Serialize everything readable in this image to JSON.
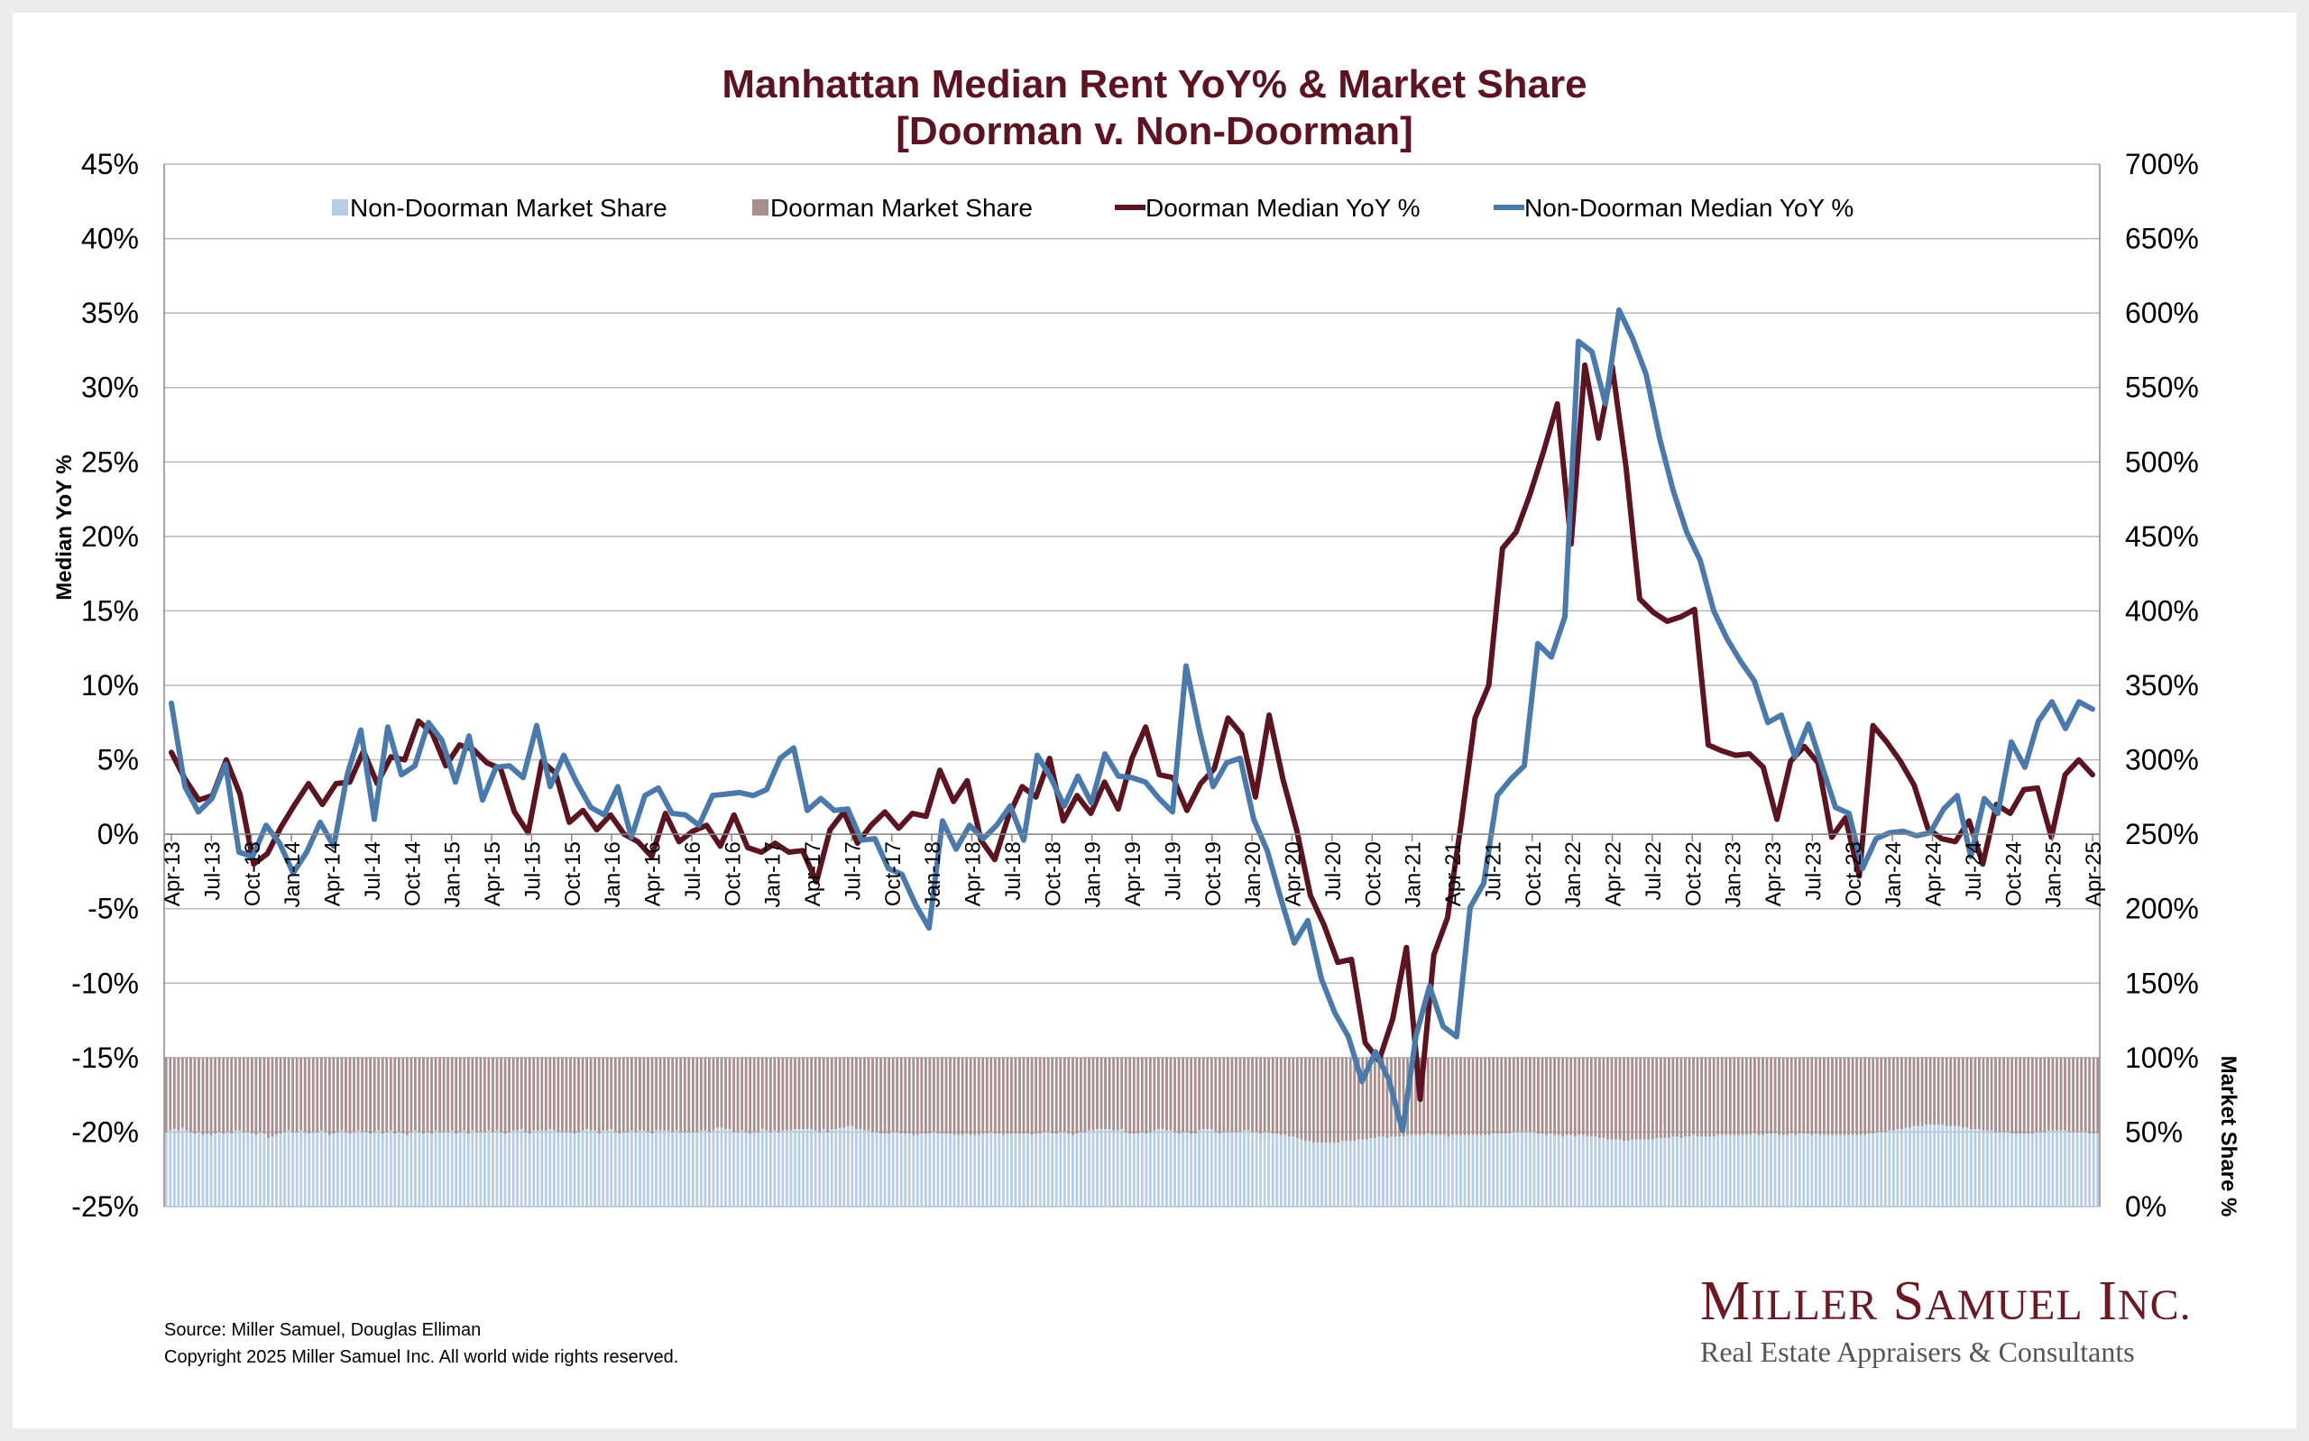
{
  "title": {
    "line1": "Manhattan Median Rent YoY% & Market Share",
    "line2": "[Doorman v. Non-Doorman]"
  },
  "source": {
    "line1": "Source: Miller Samuel, Douglas Elliman",
    "line2": "Copyright 2025 Miller Samuel Inc.  All world wide rights reserved."
  },
  "logo": {
    "name_initial_1": "M",
    "name_rest_1": "ILLER",
    "name_initial_2": "S",
    "name_rest_2": "AMUEL",
    "name_initial_3": "I",
    "name_rest_3": "NC.",
    "tagline": "Real Estate Appraisers & Consultants"
  },
  "chart_data": {
    "type": "line",
    "title": "Manhattan Median Rent YoY% & Market Share [Doorman v. Non-Doorman]",
    "ylabel": "Median YoY %",
    "y2label": "Market Share %",
    "ylim": [
      -25,
      45
    ],
    "y2lim": [
      0,
      700
    ],
    "yticks": [
      "45%",
      "40%",
      "35%",
      "30%",
      "25%",
      "20%",
      "15%",
      "10%",
      "5%",
      "0%",
      "-5%",
      "-10%",
      "-15%",
      "-20%",
      "-25%"
    ],
    "y2ticks": [
      "700%",
      "650%",
      "600%",
      "550%",
      "500%",
      "450%",
      "400%",
      "350%",
      "300%",
      "250%",
      "200%",
      "150%",
      "100%",
      "50%",
      "0%"
    ],
    "xtick_labels": [
      "Apr-13",
      "Jul-13",
      "Oct-13",
      "Jan-14",
      "Apr-14",
      "Jul-14",
      "Oct-14",
      "Jan-15",
      "Apr-15",
      "Jul-15",
      "Oct-15",
      "Jan-16",
      "Apr-16",
      "Jul-16",
      "Oct-16",
      "Jan-17",
      "Apr-17",
      "Jul-17",
      "Oct-17",
      "Jan-18",
      "Apr-18",
      "Jul-18",
      "Oct-18",
      "Jan-19",
      "Apr-19",
      "Jul-19",
      "Oct-19",
      "Jan-20",
      "Apr-20",
      "Jul-20",
      "Oct-20",
      "Jan-21",
      "Apr-21",
      "Jul-21",
      "Oct-21",
      "Jan-22",
      "Apr-22",
      "Jul-22",
      "Oct-22",
      "Jan-23",
      "Apr-23",
      "Jul-23",
      "Oct-23",
      "Jan-24",
      "Apr-24",
      "Jul-24",
      "Oct-24",
      "Jan-25",
      "Apr-25"
    ],
    "x_start": "Apr-13",
    "x_end": "Apr-25",
    "grid": true,
    "legend": "top",
    "colors": {
      "doorman_line": "#5c1420",
      "non_doorman_line": "#4a7aac",
      "doorman_bar": "#a98e8e",
      "non_doorman_bar": "#b7cde3",
      "title": "#5c1420"
    },
    "series": [
      {
        "name": "Non-Doorman Market Share",
        "kind": "bar",
        "axis": "right",
        "values": [
          50,
          51,
          52,
          51,
          53,
          51,
          50,
          49,
          50,
          48,
          49,
          48,
          49,
          50,
          49,
          50,
          49,
          51,
          51,
          50,
          50,
          49,
          48,
          50,
          49,
          46,
          47,
          48,
          49,
          50,
          51,
          50,
          50,
          51,
          50,
          49,
          50,
          50,
          51,
          50,
          48,
          49,
          50,
          51,
          50,
          49,
          50,
          51,
          50,
          50,
          49,
          50,
          51,
          49,
          50,
          51,
          49,
          50,
          49,
          48,
          50,
          51,
          50,
          49,
          50,
          49,
          51,
          50,
          50,
          50,
          51,
          49,
          50,
          51,
          49,
          51,
          50,
          50,
          50,
          51,
          50,
          51,
          50,
          49,
          50,
          51,
          51,
          52,
          50,
          49,
          51,
          51,
          51,
          51,
          52,
          51,
          50,
          50,
          50,
          50,
          49,
          50,
          51,
          52,
          51,
          51,
          49,
          51,
          51,
          52,
          50,
          49,
          50,
          50,
          51,
          50,
          51,
          51,
          50,
          49,
          51,
          51,
          51,
          51,
          50,
          51,
          50,
          50,
          50,
          50,
          50,
          51,
          51,
          50,
          51,
          53,
          53,
          52,
          52,
          50,
          50,
          51,
          50,
          49,
          50,
          50,
          52,
          51,
          50,
          51,
          50,
          51,
          51,
          51,
          52,
          52,
          52,
          52,
          52,
          51,
          50,
          52,
          50,
          52,
          52,
          53,
          53,
          54,
          54,
          52,
          52,
          51,
          51,
          50,
          50,
          49,
          49,
          49,
          50,
          50,
          49,
          49,
          49,
          48,
          48,
          49,
          49,
          49,
          50,
          49,
          49,
          49,
          49,
          48,
          48,
          48,
          49,
          48,
          48,
          48,
          49,
          49,
          50,
          49,
          49,
          48,
          49,
          49,
          49,
          49,
          49,
          49,
          48,
          49,
          49,
          50,
          50,
          49,
          49,
          50,
          50,
          49,
          48,
          49,
          50,
          50,
          51,
          51,
          52,
          52,
          52,
          52,
          51,
          51,
          52,
          50,
          49,
          49,
          49,
          50,
          49,
          50,
          51,
          52,
          52,
          51,
          51,
          50,
          49,
          50,
          50,
          49,
          49,
          51,
          52,
          52,
          52,
          50,
          49,
          50,
          50,
          50,
          50,
          50,
          51,
          51,
          50,
          50,
          49,
          50,
          50,
          49,
          49,
          48,
          48,
          47,
          47,
          46,
          45,
          44,
          44,
          43,
          43,
          43,
          43,
          43,
          43,
          43,
          44,
          44,
          44,
          44,
          45,
          45,
          45,
          46,
          46,
          47,
          47,
          46,
          47,
          47,
          47,
          47,
          48,
          48,
          48,
          48,
          48,
          49,
          48,
          48,
          48,
          48,
          47,
          48,
          48,
          48,
          48,
          48,
          48,
          48,
          48,
          48,
          48,
          49,
          49,
          49,
          49,
          49,
          50,
          50,
          50,
          50,
          50,
          50,
          49,
          49,
          48,
          49,
          48,
          48,
          47,
          48,
          48,
          47,
          48,
          48,
          47,
          47,
          47,
          46,
          46,
          45,
          45,
          45,
          45,
          44,
          44,
          45,
          45,
          45,
          45,
          45,
          45,
          46,
          46,
          46,
          46,
          47,
          47,
          46,
          47,
          47,
          48,
          47,
          47,
          47,
          47,
          47,
          48,
          48,
          48,
          48,
          48,
          48,
          48,
          48,
          48,
          49,
          48,
          48,
          49,
          49,
          49,
          48,
          48,
          48,
          49,
          48,
          49,
          49,
          49,
          48,
          49,
          48,
          48,
          48,
          48,
          48,
          48,
          48,
          48,
          48,
          48,
          48,
          48,
          49,
          49,
          50,
          50,
          50,
          51,
          51,
          52,
          52,
          53,
          53,
          54,
          54,
          54,
          55,
          55,
          55,
          55,
          55,
          54,
          54,
          54,
          54,
          53,
          53,
          52,
          52,
          52,
          51,
          51,
          51,
          50,
          50,
          50,
          50,
          49,
          49,
          49,
          49,
          49,
          49,
          50,
          50,
          50,
          51,
          51,
          51,
          51,
          51,
          50,
          50,
          50,
          50,
          50,
          49,
          49,
          49
        ]
      },
      {
        "name": "Doorman Market Share",
        "kind": "bar-stacked-to-100",
        "axis": "right",
        "note_total": 100
      },
      {
        "name": "Doorman Median YoY %",
        "kind": "line",
        "axis": "left",
        "values": [
          5.5,
          3.7,
          2.3,
          2.6,
          5.0,
          2.7,
          -2.0,
          -1.3,
          0.5,
          2.0,
          3.4,
          2.0,
          3.4,
          3.5,
          5.6,
          3.4,
          5.2,
          5.0,
          7.6,
          6.8,
          4.6,
          6.0,
          5.7,
          4.8,
          4.4,
          1.5,
          0.1,
          4.9,
          4.1,
          0.8,
          1.6,
          0.3,
          1.3,
          0.0,
          -0.5,
          -1.5,
          1.4,
          -0.5,
          0.2,
          0.6,
          -0.8,
          1.3,
          -0.9,
          -1.2,
          -0.6,
          -1.2,
          -1.1,
          -3.2,
          0.3,
          1.5,
          -0.6,
          0.6,
          1.5,
          0.4,
          1.4,
          1.2,
          4.3,
          2.2,
          3.6,
          -0.4,
          -1.7,
          1.2,
          3.2,
          2.5,
          5.1,
          0.9,
          2.6,
          1.4,
          3.5,
          1.7,
          5.1,
          7.2,
          4.0,
          3.8,
          1.6,
          3.4,
          4.4,
          7.8,
          6.7,
          2.5,
          8.0,
          3.7,
          0.3,
          -4.1,
          -6.1,
          -8.6,
          -8.4,
          -14.0,
          -15.2,
          -12.4,
          -7.6,
          -17.8,
          -8.1,
          -5.6,
          0.8,
          7.8,
          10.0,
          19.2,
          20.3,
          22.8,
          25.7,
          28.9,
          19.5,
          31.5,
          26.6,
          31.4,
          24.7,
          15.8,
          14.9,
          14.3,
          14.6,
          15.1,
          6.0,
          5.6,
          5.3,
          5.4,
          4.5,
          1.0,
          4.9,
          5.9,
          4.8,
          -0.2,
          1.1,
          -2.8,
          7.3,
          6.2,
          4.9,
          3.3,
          0.4,
          -0.3,
          -0.5,
          0.9,
          -2.0,
          2.0,
          1.4,
          3.0,
          3.1,
          -0.2,
          4.0,
          5.0,
          4.0
        ]
      },
      {
        "name": "Non-Doorman Median YoY %",
        "kind": "line",
        "axis": "left",
        "values": [
          8.8,
          3.2,
          1.5,
          2.4,
          4.7,
          -1.2,
          -1.5,
          0.6,
          -0.6,
          -2.6,
          -1.2,
          0.8,
          -0.8,
          4.0,
          7.0,
          1.0,
          7.2,
          4.0,
          4.6,
          7.5,
          6.3,
          3.5,
          6.6,
          2.3,
          4.5,
          4.6,
          3.8,
          7.3,
          3.2,
          5.3,
          3.4,
          1.8,
          1.3,
          3.2,
          -0.2,
          2.6,
          3.1,
          1.4,
          1.3,
          0.6,
          2.6,
          2.7,
          2.8,
          2.6,
          3.0,
          5.1,
          5.8,
          1.6,
          2.4,
          1.6,
          1.7,
          -0.4,
          -0.3,
          -2.3,
          -2.7,
          -4.7,
          -6.3,
          0.9,
          -1.0,
          0.6,
          -0.3,
          0.6,
          1.9,
          -0.4,
          5.3,
          3.8,
          1.9,
          3.9,
          2.1,
          5.4,
          3.9,
          3.8,
          3.5,
          2.4,
          1.5,
          11.3,
          6.9,
          3.2,
          4.8,
          5.1,
          1.0,
          -1.1,
          -4.3,
          -7.3,
          -5.8,
          -9.7,
          -12.0,
          -13.6,
          -16.6,
          -14.6,
          -16.5,
          -19.9,
          -13.5,
          -10.2,
          -12.9,
          -13.6,
          -4.9,
          -3.3,
          2.6,
          3.7,
          4.6,
          12.8,
          11.9,
          14.6,
          33.1,
          32.4,
          28.9,
          35.2,
          33.3,
          30.9,
          26.6,
          23.1,
          20.3,
          18.4,
          15.0,
          13.1,
          11.6,
          10.3,
          7.5,
          8.0,
          5.2,
          7.4,
          4.6,
          1.8,
          1.4,
          -2.3,
          -0.3,
          0.1,
          0.2,
          -0.1,
          0.1,
          1.7,
          2.6,
          -1.5,
          2.4,
          1.4,
          6.2,
          4.5,
          7.6,
          8.9,
          7.1,
          8.9,
          8.4
        ]
      }
    ]
  }
}
